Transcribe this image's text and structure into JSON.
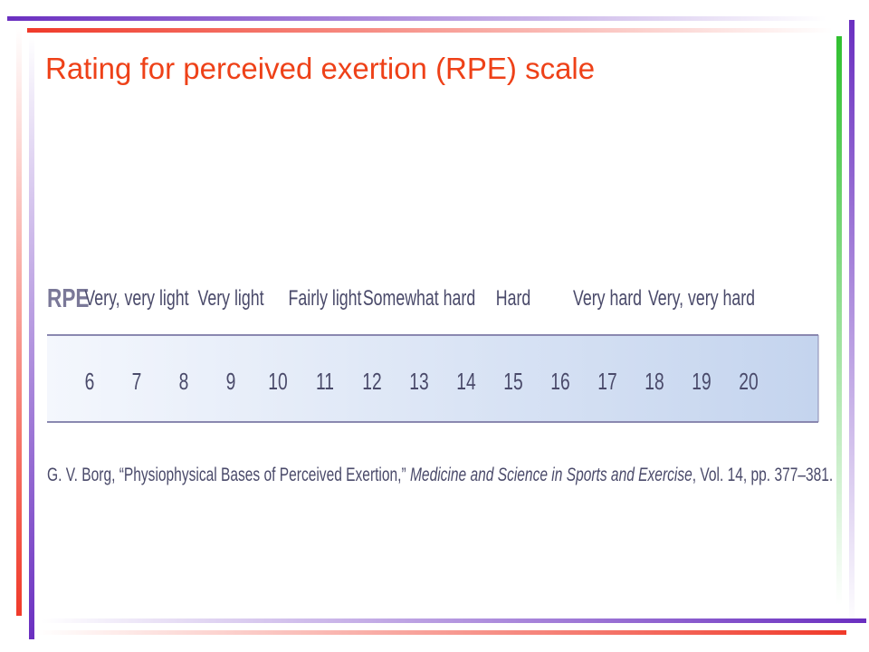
{
  "title": "Rating for perceived exertion (RPE) scale",
  "scale": {
    "heading": "RPE",
    "labels": [
      "Very, very light",
      "Very light",
      "Fairly light",
      "Somewhat hard",
      "Hard",
      "Very hard",
      "Very, very hard"
    ],
    "numbers": [
      "6",
      "7",
      "8",
      "9",
      "10",
      "11",
      "12",
      "13",
      "14",
      "15",
      "16",
      "17",
      "18",
      "19",
      "20"
    ]
  },
  "citation": {
    "authors": "G. V. Borg, “Physiophysical Bases of Perceived Exertion,” ",
    "journal": "Medicine and Science in Sports and Exercise",
    "details": ", Vol. 14, pp. 377–381."
  }
}
